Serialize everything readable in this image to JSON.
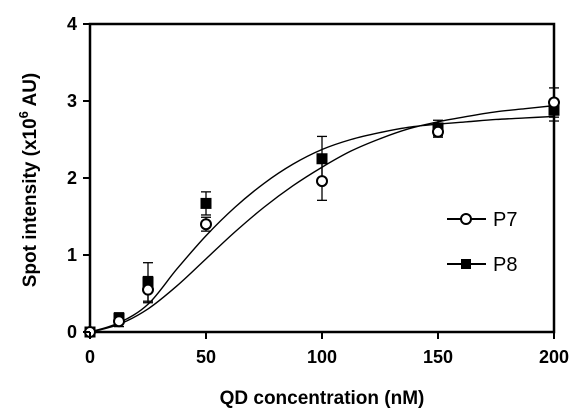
{
  "chart_data": {
    "type": "scatter",
    "xlabel": "QD concentration (nM)",
    "ylabel_main": "Spot intensity (x10",
    "ylabel_sup": "6",
    "ylabel_end": " AU)",
    "xlim": [
      0,
      200
    ],
    "ylim": [
      0,
      4
    ],
    "x_ticks": [
      0,
      50,
      100,
      150,
      200
    ],
    "y_ticks": [
      0,
      1,
      2,
      3,
      4
    ],
    "x_tick_labels": [
      "0",
      "50",
      "100",
      "150",
      "200"
    ],
    "y_tick_labels": [
      "0",
      "1",
      "2",
      "3",
      "4"
    ],
    "grid": false,
    "legend_position": "right",
    "series": [
      {
        "name": "P7",
        "marker": "open-circle",
        "x": [
          0,
          12.5,
          25,
          50,
          100,
          150,
          200
        ],
        "y": [
          0.0,
          0.14,
          0.55,
          1.4,
          1.96,
          2.6,
          2.98
        ],
        "err": [
          0.03,
          0.07,
          0.17,
          0.09,
          0.25,
          0.07,
          0.19
        ],
        "fit": [
          0.0,
          0.1,
          0.3,
          0.6,
          0.95,
          1.3,
          1.62,
          1.9,
          2.14,
          2.35,
          2.51,
          2.64,
          2.73,
          2.8,
          2.86,
          2.9,
          2.94
        ]
      },
      {
        "name": "P8",
        "marker": "filled-square",
        "x": [
          0,
          12.5,
          25,
          50,
          100,
          150,
          200
        ],
        "y": [
          0.0,
          0.18,
          0.65,
          1.67,
          2.25,
          2.65,
          2.88
        ],
        "err": [
          0.03,
          0.07,
          0.25,
          0.15,
          0.29,
          0.1,
          0.14
        ],
        "fit": [
          0.0,
          0.12,
          0.36,
          0.82,
          1.25,
          1.62,
          1.93,
          2.18,
          2.37,
          2.5,
          2.59,
          2.66,
          2.7,
          2.73,
          2.76,
          2.78,
          2.8
        ]
      }
    ],
    "fit_x": [
      0,
      12.5,
      25,
      37.5,
      50,
      62.5,
      75,
      87.5,
      100,
      112.5,
      125,
      137.5,
      150,
      162.5,
      175,
      187.5,
      200
    ]
  },
  "colors": {
    "axis": "#000000",
    "marker": "#000000",
    "background": "#ffffff"
  }
}
